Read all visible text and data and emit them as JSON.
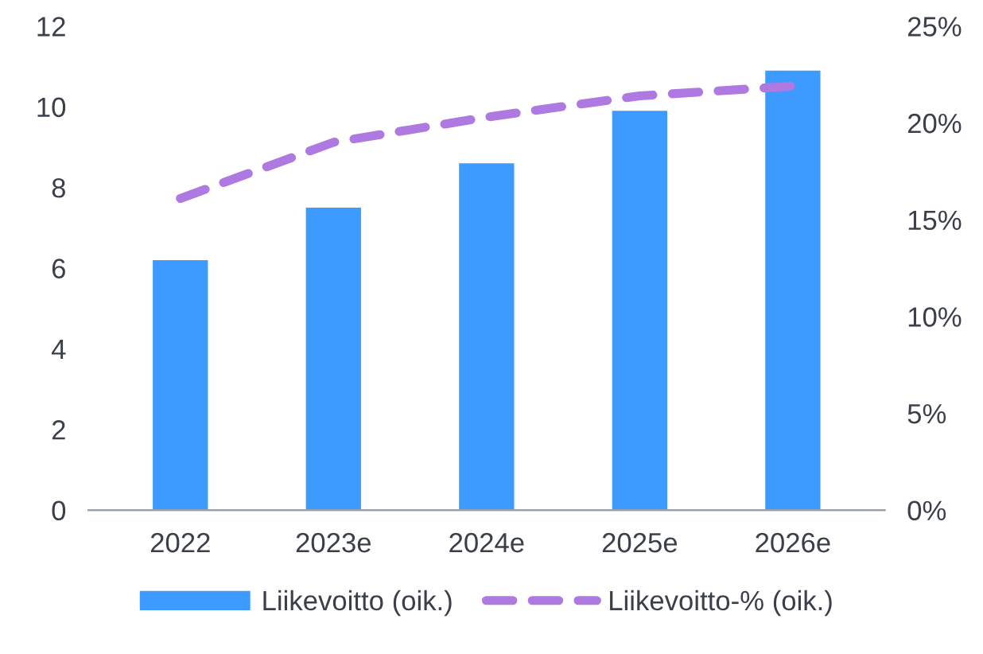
{
  "chart_data": {
    "type": "bar",
    "categories": [
      "2022",
      "2023e",
      "2024e",
      "2025e",
      "2026e"
    ],
    "series": [
      {
        "name": "Liikevoitto (oik.)",
        "color": "#3d9bff",
        "values": [
          6.2,
          7.5,
          8.6,
          9.9,
          10.9
        ]
      },
      {
        "name": "Liikevoitto-% (oik.)",
        "type": "line",
        "axis": "y2",
        "color": "#ae79e0",
        "line_style": "dashed",
        "values": [
          16.1,
          19.0,
          20.3,
          21.4,
          21.9
        ]
      }
    ],
    "ylim": [
      0,
      12
    ],
    "yticks": [
      0,
      2,
      4,
      6,
      8,
      10,
      12
    ],
    "y2lim": [
      0,
      25
    ],
    "y2ticks": [
      {
        "value": 0,
        "label": "0%"
      },
      {
        "value": 5,
        "label": "5%"
      },
      {
        "value": 10,
        "label": "10%"
      },
      {
        "value": 15,
        "label": "15%"
      },
      {
        "value": 20,
        "label": "20%"
      },
      {
        "value": 25,
        "label": "25%"
      }
    ],
    "grid": false,
    "legend": "bottom"
  }
}
